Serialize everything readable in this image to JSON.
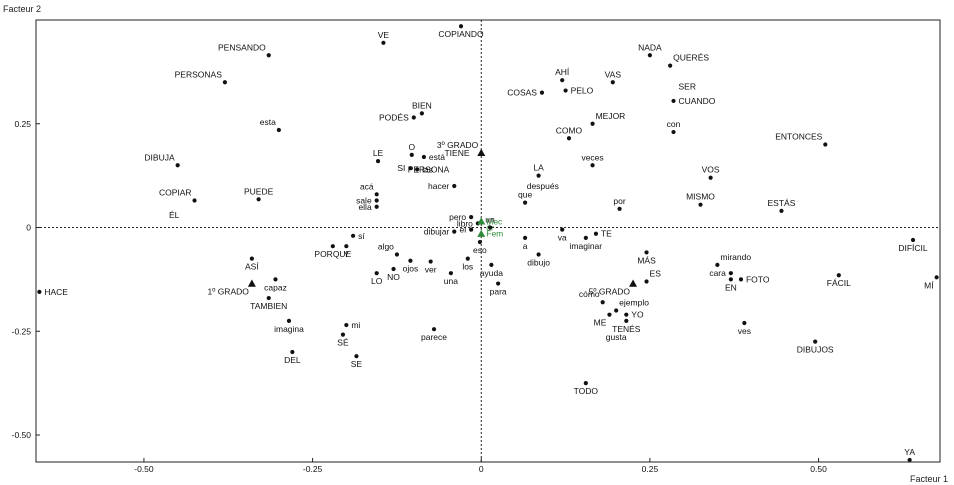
{
  "chart_data": {
    "type": "scatter",
    "title": "",
    "xlabel": "Facteur 1",
    "ylabel": "Facteur 2",
    "xlim": [
      -0.66,
      0.68
    ],
    "ylim": [
      -0.565,
      0.5
    ],
    "grid": false,
    "xticks": [
      {
        "v": -0.5,
        "t": "-0.50"
      },
      {
        "v": -0.25,
        "t": "-0.25"
      },
      {
        "v": 0,
        "t": "0"
      },
      {
        "v": 0.25,
        "t": "0.25"
      },
      {
        "v": 0.5,
        "t": "0.50"
      }
    ],
    "yticks": [
      {
        "v": 0.25,
        "t": "0.25"
      },
      {
        "v": 0,
        "t": "0"
      },
      {
        "v": -0.25,
        "t": "-0.25"
      },
      {
        "v": -0.5,
        "t": "-0.50"
      }
    ],
    "points": [
      {
        "label": "VE",
        "x": -0.145,
        "y": 0.445,
        "m": "dot",
        "lp": "above"
      },
      {
        "label": "COPIANDO",
        "x": -0.03,
        "y": 0.485,
        "m": "dot",
        "lp": "below"
      },
      {
        "label": "PENSANDO",
        "x": -0.315,
        "y": 0.415,
        "m": "dot",
        "lp": "aboveleft"
      },
      {
        "label": "PERSONAS",
        "x": -0.38,
        "y": 0.35,
        "m": "dot",
        "lp": "aboveleft"
      },
      {
        "label": "esta",
        "x": -0.3,
        "y": 0.235,
        "m": "dot",
        "lp": "aboveleft"
      },
      {
        "label": "BIEN",
        "x": -0.088,
        "y": 0.275,
        "m": "dot",
        "lp": "above"
      },
      {
        "label": "PODÉS",
        "x": -0.1,
        "y": 0.265,
        "m": "dot",
        "lp": "left"
      },
      {
        "label": "3º GRADO",
        "x": 0.0,
        "y": 0.18,
        "m": "tri",
        "lp": "aboveleft"
      },
      {
        "label": "TIENE",
        "x": -0.01,
        "y": 0.18,
        "m": "none",
        "lp": "left"
      },
      {
        "label": "LE",
        "x": -0.153,
        "y": 0.16,
        "m": "dot",
        "lp": "above"
      },
      {
        "label": "O",
        "x": -0.103,
        "y": 0.175,
        "m": "dot",
        "lp": "above"
      },
      {
        "label": "está",
        "x": -0.085,
        "y": 0.17,
        "m": "dot",
        "lp": "right"
      },
      {
        "label": "SI",
        "x": -0.105,
        "y": 0.143,
        "m": "dot",
        "lp": "left"
      },
      {
        "label": "las",
        "x": -0.095,
        "y": 0.14,
        "m": "dot",
        "lp": "right"
      },
      {
        "label": "PERSONA",
        "x": -0.04,
        "y": 0.14,
        "m": "none",
        "lp": "left"
      },
      {
        "label": "DIBUJA",
        "x": -0.45,
        "y": 0.15,
        "m": "dot",
        "lp": "aboveleft"
      },
      {
        "label": "acá",
        "x": -0.155,
        "y": 0.08,
        "m": "dot",
        "lp": "aboveleft"
      },
      {
        "label": "hacer",
        "x": -0.04,
        "y": 0.1,
        "m": "dot",
        "lp": "left"
      },
      {
        "label": "sale",
        "x": -0.155,
        "y": 0.065,
        "m": "dot",
        "lp": "left"
      },
      {
        "label": "ella",
        "x": -0.155,
        "y": 0.05,
        "m": "dot",
        "lp": "left"
      },
      {
        "label": "PUEDE",
        "x": -0.33,
        "y": 0.068,
        "m": "dot",
        "lp": "above"
      },
      {
        "label": "COPIAR",
        "x": -0.425,
        "y": 0.065,
        "m": "dot",
        "lp": "aboveleft"
      },
      {
        "label": "ÉL",
        "x": -0.44,
        "y": 0.03,
        "m": "none",
        "lp": "left"
      },
      {
        "label": "pero",
        "x": -0.015,
        "y": 0.025,
        "m": "dot",
        "lp": "left"
      },
      {
        "label": "libro",
        "x": -0.005,
        "y": 0.01,
        "m": "dot",
        "lp": "left"
      },
      {
        "label": "el",
        "x": -0.015,
        "y": -0.005,
        "m": "dot",
        "lp": "left"
      },
      {
        "label": "dibujar",
        "x": -0.04,
        "y": -0.01,
        "m": "dot",
        "lp": "left"
      },
      {
        "label": "eso",
        "x": -0.002,
        "y": -0.035,
        "m": "dot",
        "lp": "below"
      },
      {
        "label": "Mec",
        "x": 0.0,
        "y": 0.015,
        "m": "tri-green",
        "lp": "right"
      },
      {
        "label": "ór",
        "x": 0.0,
        "y": 0.0,
        "m": "none-green",
        "lp": "right"
      },
      {
        "label": "Fem",
        "x": 0.0,
        "y": -0.015,
        "m": "tri-green",
        "lp": "right"
      },
      {
        "label": "un",
        "x": 0.013,
        "y": 0.0,
        "m": "dot",
        "lp": "above"
      },
      {
        "label": "sí",
        "x": -0.19,
        "y": -0.02,
        "m": "dot",
        "lp": "right"
      },
      {
        "label": "PORQUE",
        "x": -0.22,
        "y": -0.045,
        "m": "dot",
        "lp": "below"
      },
      {
        "label": "Y",
        "x": -0.2,
        "y": -0.045,
        "m": "dot",
        "lp": "below"
      },
      {
        "label": "algo",
        "x": -0.125,
        "y": -0.065,
        "m": "dot",
        "lp": "aboveleft"
      },
      {
        "label": "ojos",
        "x": -0.105,
        "y": -0.08,
        "m": "dot",
        "lp": "below"
      },
      {
        "label": "ver",
        "x": -0.075,
        "y": -0.082,
        "m": "dot",
        "lp": "below"
      },
      {
        "label": "los",
        "x": -0.02,
        "y": -0.075,
        "m": "dot",
        "lp": "below"
      },
      {
        "label": "una",
        "x": -0.045,
        "y": -0.11,
        "m": "dot",
        "lp": "below"
      },
      {
        "label": "ayuda",
        "x": 0.015,
        "y": -0.09,
        "m": "dot",
        "lp": "below"
      },
      {
        "label": "para",
        "x": 0.025,
        "y": -0.135,
        "m": "dot",
        "lp": "below"
      },
      {
        "label": "LO",
        "x": -0.155,
        "y": -0.11,
        "m": "dot",
        "lp": "below"
      },
      {
        "label": "NO",
        "x": -0.13,
        "y": -0.1,
        "m": "dot",
        "lp": "below"
      },
      {
        "label": "ASÍ",
        "x": -0.34,
        "y": -0.075,
        "m": "dot",
        "lp": "below"
      },
      {
        "label": "capaz",
        "x": -0.305,
        "y": -0.125,
        "m": "dot",
        "lp": "below"
      },
      {
        "label": "1º GRADO",
        "x": -0.34,
        "y": -0.135,
        "m": "tri",
        "lp": "belowleft"
      },
      {
        "label": "TAMBIEN",
        "x": -0.315,
        "y": -0.17,
        "m": "dot",
        "lp": "below"
      },
      {
        "label": "imagina",
        "x": -0.285,
        "y": -0.225,
        "m": "dot",
        "lp": "below"
      },
      {
        "label": "mi",
        "x": -0.2,
        "y": -0.235,
        "m": "dot",
        "lp": "right"
      },
      {
        "label": "SÉ",
        "x": -0.205,
        "y": -0.258,
        "m": "dot",
        "lp": "below"
      },
      {
        "label": "SE",
        "x": -0.185,
        "y": -0.31,
        "m": "dot",
        "lp": "below"
      },
      {
        "label": "DEL",
        "x": -0.28,
        "y": -0.3,
        "m": "dot",
        "lp": "below"
      },
      {
        "label": "parece",
        "x": -0.07,
        "y": -0.245,
        "m": "dot",
        "lp": "below"
      },
      {
        "label": "HACE",
        "x": -0.655,
        "y": -0.155,
        "m": "dot",
        "lp": "right"
      },
      {
        "label": "AHÍ",
        "x": 0.12,
        "y": 0.355,
        "m": "dot",
        "lp": "above"
      },
      {
        "label": "PELO",
        "x": 0.125,
        "y": 0.33,
        "m": "dot",
        "lp": "right"
      },
      {
        "label": "COSAS",
        "x": 0.09,
        "y": 0.325,
        "m": "dot",
        "lp": "left"
      },
      {
        "label": "VAS",
        "x": 0.195,
        "y": 0.35,
        "m": "dot",
        "lp": "above"
      },
      {
        "label": "NADA",
        "x": 0.25,
        "y": 0.415,
        "m": "dot",
        "lp": "above"
      },
      {
        "label": "QUERÉS",
        "x": 0.28,
        "y": 0.39,
        "m": "dot",
        "lp": "aboveright"
      },
      {
        "label": "SER",
        "x": 0.285,
        "y": 0.34,
        "m": "none",
        "lp": "right"
      },
      {
        "label": "CUANDO",
        "x": 0.285,
        "y": 0.305,
        "m": "dot",
        "lp": "right"
      },
      {
        "label": "MEJOR",
        "x": 0.165,
        "y": 0.25,
        "m": "dot",
        "lp": "aboveright"
      },
      {
        "label": "COMO",
        "x": 0.13,
        "y": 0.215,
        "m": "dot",
        "lp": "above"
      },
      {
        "label": "con",
        "x": 0.285,
        "y": 0.23,
        "m": "dot",
        "lp": "above"
      },
      {
        "label": "ENTONCES",
        "x": 0.51,
        "y": 0.2,
        "m": "dot",
        "lp": "aboveleft"
      },
      {
        "label": "veces",
        "x": 0.165,
        "y": 0.15,
        "m": "dot",
        "lp": "above"
      },
      {
        "label": "LA",
        "x": 0.085,
        "y": 0.125,
        "m": "dot",
        "lp": "above"
      },
      {
        "label": "después",
        "x": 0.06,
        "y": 0.1,
        "m": "none",
        "lp": "right"
      },
      {
        "label": "que",
        "x": 0.065,
        "y": 0.06,
        "m": "dot",
        "lp": "above"
      },
      {
        "label": "VOS",
        "x": 0.34,
        "y": 0.12,
        "m": "dot",
        "lp": "above"
      },
      {
        "label": "MISMO",
        "x": 0.325,
        "y": 0.055,
        "m": "dot",
        "lp": "above"
      },
      {
        "label": "ESTÁS",
        "x": 0.445,
        "y": 0.04,
        "m": "dot",
        "lp": "above"
      },
      {
        "label": "por",
        "x": 0.205,
        "y": 0.045,
        "m": "dot",
        "lp": "above"
      },
      {
        "label": "a",
        "x": 0.065,
        "y": -0.025,
        "m": "dot",
        "lp": "below"
      },
      {
        "label": "va",
        "x": 0.12,
        "y": -0.005,
        "m": "dot",
        "lp": "below"
      },
      {
        "label": "TE",
        "x": 0.17,
        "y": -0.015,
        "m": "dot",
        "lp": "right"
      },
      {
        "label": "imaginar",
        "x": 0.155,
        "y": -0.025,
        "m": "dot",
        "lp": "below"
      },
      {
        "label": "dibujo",
        "x": 0.085,
        "y": -0.065,
        "m": "dot",
        "lp": "below"
      },
      {
        "label": "MÁS",
        "x": 0.245,
        "y": -0.06,
        "m": "dot",
        "lp": "below"
      },
      {
        "label": "ES",
        "x": 0.245,
        "y": -0.13,
        "m": "dot",
        "lp": "aboveright"
      },
      {
        "label": "5º GRADO",
        "x": 0.225,
        "y": -0.135,
        "m": "tri",
        "lp": "belowleft"
      },
      {
        "label": "cómo",
        "x": 0.18,
        "y": -0.18,
        "m": "dot",
        "lp": "aboveleft"
      },
      {
        "label": "ejemplo",
        "x": 0.2,
        "y": -0.2,
        "m": "dot",
        "lp": "aboveright"
      },
      {
        "label": "ME",
        "x": 0.19,
        "y": -0.21,
        "m": "dot",
        "lp": "belowleft"
      },
      {
        "label": "YO",
        "x": 0.215,
        "y": -0.21,
        "m": "dot",
        "lp": "right"
      },
      {
        "label": "TENÉS",
        "x": 0.215,
        "y": -0.225,
        "m": "dot",
        "lp": "below"
      },
      {
        "label": "gusta",
        "x": 0.2,
        "y": -0.245,
        "m": "none",
        "lp": "below"
      },
      {
        "label": "TODO",
        "x": 0.155,
        "y": -0.375,
        "m": "dot",
        "lp": "below"
      },
      {
        "label": "mirando",
        "x": 0.35,
        "y": -0.09,
        "m": "dot",
        "lp": "aboveright"
      },
      {
        "label": "cara",
        "x": 0.37,
        "y": -0.11,
        "m": "dot",
        "lp": "left"
      },
      {
        "label": "EN",
        "x": 0.37,
        "y": -0.125,
        "m": "dot",
        "lp": "below"
      },
      {
        "label": "FOTO",
        "x": 0.385,
        "y": -0.125,
        "m": "dot",
        "lp": "right"
      },
      {
        "label": "ves",
        "x": 0.39,
        "y": -0.23,
        "m": "dot",
        "lp": "below"
      },
      {
        "label": "DIBUJOS",
        "x": 0.495,
        "y": -0.275,
        "m": "dot",
        "lp": "below"
      },
      {
        "label": "DIFÍCIL",
        "x": 0.64,
        "y": -0.03,
        "m": "dot",
        "lp": "below"
      },
      {
        "label": "FÁCIL",
        "x": 0.53,
        "y": -0.115,
        "m": "dot",
        "lp": "below"
      },
      {
        "label": "MÍ",
        "x": 0.675,
        "y": -0.12,
        "m": "dot",
        "lp": "belowleft"
      },
      {
        "label": "YA",
        "x": 0.635,
        "y": -0.56,
        "m": "dot",
        "lp": "above"
      }
    ]
  }
}
